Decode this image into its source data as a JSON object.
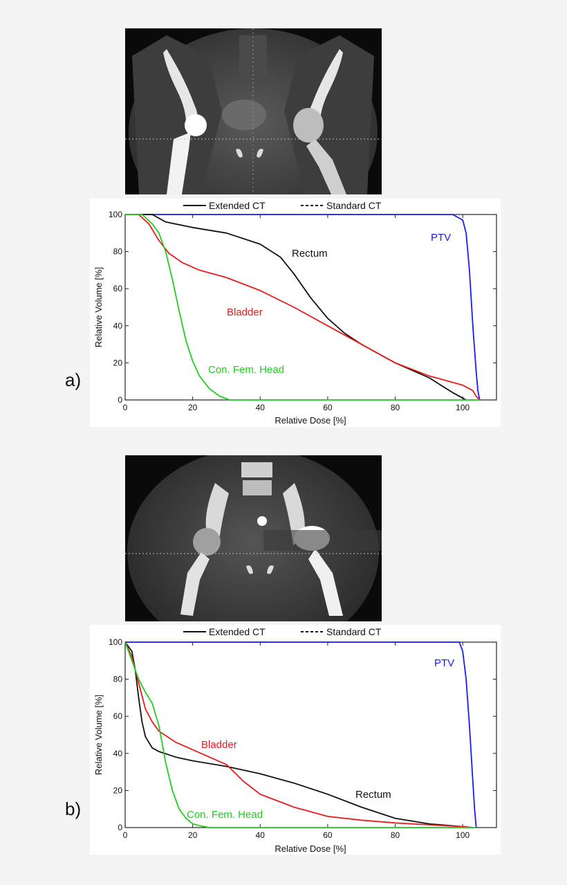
{
  "panels": [
    {
      "label": "a)",
      "image": "coronal-ct-pelvis-right-hip-prosthesis",
      "legend": [
        {
          "name": "Extended CT",
          "style": "solid"
        },
        {
          "name": "Standard CT",
          "style": "dashed"
        }
      ]
    },
    {
      "label": "b)",
      "image": "coronal-ct-pelvis-left-hip-prosthesis",
      "legend": [
        {
          "name": "Extended CT",
          "style": "solid"
        },
        {
          "name": "Standard CT",
          "style": "dashed"
        }
      ]
    }
  ],
  "chart_data": [
    {
      "type": "line",
      "xlabel": "Relative Dose [%]",
      "ylabel": "Relative Volume [%]",
      "xlim": [
        0,
        110
      ],
      "ylim": [
        0,
        100
      ],
      "xticks": [
        "0",
        "20",
        "40",
        "60",
        "80",
        "100"
      ],
      "yticks": [
        "0",
        "20",
        "40",
        "60",
        "80",
        "100"
      ],
      "grid": false,
      "series": [
        {
          "name": "PTV",
          "color": "#1a1aff",
          "points": [
            [
              0,
              100
            ],
            [
              97,
              100
            ],
            [
              100,
              97
            ],
            [
              101,
              90
            ],
            [
              102,
              70
            ],
            [
              103,
              40
            ],
            [
              104,
              15
            ],
            [
              104.5,
              5
            ],
            [
              105,
              0
            ]
          ]
        },
        {
          "name": "Rectum",
          "color": "#111111",
          "points": [
            [
              0,
              100
            ],
            [
              8,
              100
            ],
            [
              12,
              96
            ],
            [
              20,
              93
            ],
            [
              30,
              90
            ],
            [
              40,
              84
            ],
            [
              46,
              77
            ],
            [
              50,
              68
            ],
            [
              55,
              55
            ],
            [
              60,
              44
            ],
            [
              65,
              36
            ],
            [
              70,
              30
            ],
            [
              75,
              25
            ],
            [
              80,
              20
            ],
            [
              90,
              12
            ],
            [
              97,
              4
            ],
            [
              100,
              1
            ],
            [
              101,
              0
            ]
          ]
        },
        {
          "name": "Bladder",
          "color": "#e81c1c",
          "points": [
            [
              0,
              100
            ],
            [
              4,
              100
            ],
            [
              7,
              95
            ],
            [
              10,
              86
            ],
            [
              13,
              79
            ],
            [
              17,
              74
            ],
            [
              22,
              70
            ],
            [
              30,
              66
            ],
            [
              40,
              59
            ],
            [
              50,
              50
            ],
            [
              60,
              40
            ],
            [
              70,
              30
            ],
            [
              80,
              20
            ],
            [
              90,
              13
            ],
            [
              100,
              8
            ],
            [
              103,
              5
            ],
            [
              104,
              2
            ],
            [
              105,
              0
            ]
          ]
        },
        {
          "name": "Con. Fem. Head",
          "color": "#22cc22",
          "points": [
            [
              0,
              100
            ],
            [
              5,
              100
            ],
            [
              8,
              95
            ],
            [
              10,
              90
            ],
            [
              12,
              80
            ],
            [
              14,
              65
            ],
            [
              16,
              48
            ],
            [
              18,
              32
            ],
            [
              20,
              21
            ],
            [
              22,
              13
            ],
            [
              25,
              6
            ],
            [
              28,
              2
            ],
            [
              31,
              0
            ],
            [
              105,
              0
            ]
          ]
        }
      ],
      "annotations": [
        {
          "text": "PTV",
          "color": "#1a1aff"
        },
        {
          "text": "Rectum",
          "color": "#111111"
        },
        {
          "text": "Bladder",
          "color": "#e81c1c"
        },
        {
          "text": "Con. Fem. Head",
          "color": "#22cc22"
        }
      ]
    },
    {
      "type": "line",
      "xlabel": "Relative Dose [%]",
      "ylabel": "Relative Volume [%]",
      "xlim": [
        0,
        110
      ],
      "ylim": [
        0,
        100
      ],
      "xticks": [
        "0",
        "20",
        "40",
        "60",
        "80",
        "100"
      ],
      "yticks": [
        "0",
        "20",
        "40",
        "60",
        "80",
        "100"
      ],
      "grid": false,
      "series": [
        {
          "name": "PTV",
          "color": "#1a1aff",
          "points": [
            [
              0,
              100
            ],
            [
              99,
              100
            ],
            [
              100,
              95
            ],
            [
              101,
              80
            ],
            [
              102,
              55
            ],
            [
              103,
              25
            ],
            [
              103.5,
              10
            ],
            [
              104,
              0
            ]
          ]
        },
        {
          "name": "Rectum",
          "color": "#111111",
          "points": [
            [
              0,
              100
            ],
            [
              2,
              95
            ],
            [
              3,
              85
            ],
            [
              4,
              70
            ],
            [
              5,
              57
            ],
            [
              6,
              49
            ],
            [
              8,
              43
            ],
            [
              10,
              41
            ],
            [
              15,
              38
            ],
            [
              20,
              36
            ],
            [
              30,
              33
            ],
            [
              40,
              29
            ],
            [
              50,
              24
            ],
            [
              60,
              18
            ],
            [
              70,
              11
            ],
            [
              80,
              5
            ],
            [
              90,
              2
            ],
            [
              100,
              0.5
            ],
            [
              103,
              0
            ]
          ]
        },
        {
          "name": "Bladder",
          "color": "#e81c1c",
          "points": [
            [
              0,
              100
            ],
            [
              2,
              92
            ],
            [
              4,
              78
            ],
            [
              6,
              64
            ],
            [
              8,
              57
            ],
            [
              10,
              52
            ],
            [
              15,
              46
            ],
            [
              20,
              42
            ],
            [
              25,
              38
            ],
            [
              30,
              34
            ],
            [
              35,
              25
            ],
            [
              40,
              18
            ],
            [
              50,
              11
            ],
            [
              60,
              6
            ],
            [
              70,
              4
            ],
            [
              80,
              2.5
            ],
            [
              90,
              1.5
            ],
            [
              100,
              0.5
            ],
            [
              103,
              0
            ]
          ]
        },
        {
          "name": "Con. Fem. Head",
          "color": "#22cc22",
          "points": [
            [
              0,
              100
            ],
            [
              2,
              90
            ],
            [
              4,
              80
            ],
            [
              6,
              73
            ],
            [
              8,
              67
            ],
            [
              10,
              55
            ],
            [
              12,
              35
            ],
            [
              14,
              20
            ],
            [
              16,
              10
            ],
            [
              18,
              5
            ],
            [
              20,
              2
            ],
            [
              22,
              1
            ],
            [
              25,
              0
            ],
            [
              104,
              0
            ]
          ]
        }
      ],
      "annotations": [
        {
          "text": "PTV",
          "color": "#1a1aff"
        },
        {
          "text": "Bladder",
          "color": "#e81c1c"
        },
        {
          "text": "Rectum",
          "color": "#111111"
        },
        {
          "text": "Con. Fem. Head",
          "color": "#22cc22"
        }
      ]
    }
  ]
}
